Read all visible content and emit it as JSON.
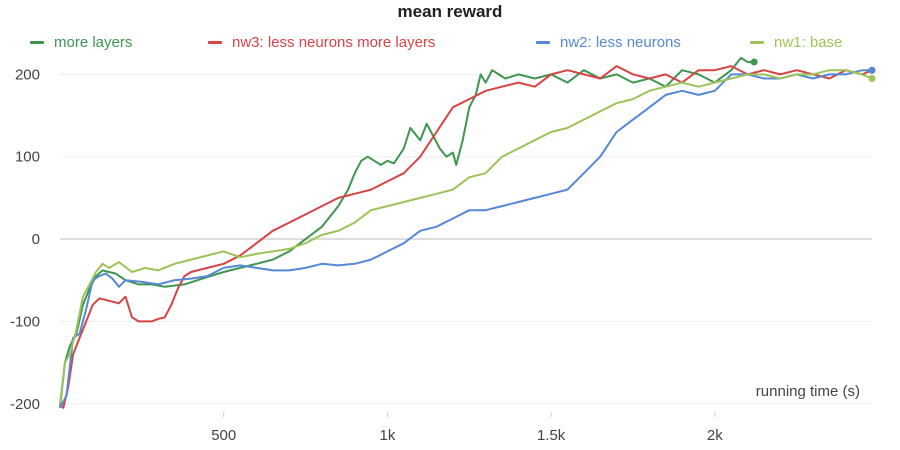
{
  "chart_data": {
    "type": "line",
    "title": "mean reward",
    "xlabel": "running time (s)",
    "ylabel": "",
    "xlim": [
      0,
      2480
    ],
    "ylim": [
      -210,
      215
    ],
    "xticks": [
      500,
      1000,
      1500,
      2000
    ],
    "xtick_labels": [
      "500",
      "1k",
      "1.5k",
      "2k"
    ],
    "yticks": [
      -200,
      -100,
      0,
      100,
      200
    ],
    "ytick_labels": [
      "-200",
      "-100",
      "0",
      "100",
      "200"
    ],
    "grid": true,
    "legend_position": "top",
    "series": [
      {
        "name": "more layers",
        "color": "#3e9651",
        "x": [
          0,
          15,
          30,
          50,
          70,
          90,
          110,
          130,
          150,
          170,
          200,
          240,
          280,
          320,
          380,
          420,
          460,
          500,
          550,
          600,
          650,
          700,
          750,
          800,
          850,
          880,
          900,
          920,
          940,
          960,
          980,
          1000,
          1020,
          1050,
          1070,
          1100,
          1120,
          1140,
          1160,
          1180,
          1200,
          1210,
          1230,
          1250,
          1270,
          1285,
          1300,
          1320,
          1340,
          1360,
          1400,
          1450,
          1500,
          1550,
          1600,
          1650,
          1700,
          1750,
          1800,
          1850,
          1900,
          1950,
          2000,
          2050,
          2080,
          2100,
          2120
        ],
        "y": [
          -205,
          -150,
          -130,
          -115,
          -80,
          -60,
          -45,
          -38,
          -40,
          -42,
          -50,
          -55,
          -55,
          -58,
          -55,
          -50,
          -45,
          -40,
          -35,
          -30,
          -25,
          -15,
          0,
          15,
          40,
          60,
          80,
          95,
          100,
          95,
          90,
          95,
          92,
          110,
          135,
          120,
          140,
          125,
          110,
          100,
          105,
          90,
          120,
          160,
          175,
          200,
          190,
          205,
          200,
          195,
          200,
          195,
          200,
          190,
          205,
          195,
          200,
          190,
          195,
          185,
          205,
          200,
          190,
          205,
          220,
          215,
          215
        ]
      },
      {
        "name": "nw3: less neurons more layers",
        "color": "#d84444",
        "x": [
          0,
          10,
          25,
          40,
          60,
          80,
          100,
          120,
          150,
          180,
          200,
          220,
          240,
          260,
          280,
          300,
          320,
          340,
          360,
          380,
          400,
          450,
          500,
          550,
          600,
          650,
          700,
          750,
          800,
          850,
          900,
          950,
          1000,
          1050,
          1100,
          1150,
          1200,
          1250,
          1300,
          1350,
          1400,
          1450,
          1500,
          1550,
          1600,
          1650,
          1700,
          1750,
          1800,
          1850,
          1900,
          1950,
          2000,
          2050,
          2100,
          2150,
          2200,
          2250,
          2300,
          2350,
          2400,
          2450,
          2480
        ],
        "y": [
          -200,
          -205,
          -180,
          -140,
          -120,
          -100,
          -80,
          -72,
          -75,
          -78,
          -70,
          -95,
          -100,
          -100,
          -100,
          -97,
          -95,
          -80,
          -60,
          -45,
          -40,
          -35,
          -30,
          -20,
          -5,
          10,
          20,
          30,
          40,
          50,
          55,
          60,
          70,
          80,
          100,
          130,
          160,
          170,
          180,
          185,
          190,
          185,
          200,
          205,
          200,
          195,
          210,
          200,
          195,
          200,
          190,
          205,
          205,
          210,
          200,
          205,
          200,
          205,
          200,
          195,
          205,
          200,
          205
        ]
      },
      {
        "name": "nw2: less neurons",
        "color": "#5588d6",
        "x": [
          0,
          20,
          40,
          60,
          80,
          100,
          120,
          140,
          160,
          180,
          200,
          250,
          300,
          350,
          400,
          450,
          500,
          550,
          600,
          650,
          700,
          750,
          800,
          850,
          900,
          950,
          1000,
          1050,
          1100,
          1150,
          1200,
          1250,
          1300,
          1350,
          1400,
          1450,
          1500,
          1550,
          1600,
          1650,
          1700,
          1750,
          1800,
          1850,
          1900,
          1950,
          2000,
          2050,
          2100,
          2150,
          2200,
          2250,
          2300,
          2350,
          2400,
          2450,
          2480
        ],
        "y": [
          -205,
          -190,
          -120,
          -115,
          -85,
          -50,
          -45,
          -42,
          -48,
          -58,
          -50,
          -52,
          -55,
          -50,
          -48,
          -45,
          -35,
          -32,
          -35,
          -38,
          -38,
          -35,
          -30,
          -32,
          -30,
          -25,
          -15,
          -5,
          10,
          15,
          25,
          35,
          35,
          40,
          45,
          50,
          55,
          60,
          80,
          100,
          130,
          145,
          160,
          175,
          180,
          175,
          180,
          200,
          200,
          195,
          195,
          200,
          195,
          200,
          200,
          205,
          205
        ]
      },
      {
        "name": "nw1: base",
        "color": "#9dc35b",
        "x": [
          0,
          15,
          30,
          50,
          70,
          90,
          110,
          130,
          150,
          180,
          220,
          260,
          300,
          350,
          400,
          450,
          500,
          550,
          600,
          650,
          700,
          750,
          800,
          850,
          900,
          950,
          1000,
          1050,
          1100,
          1150,
          1200,
          1250,
          1300,
          1350,
          1400,
          1450,
          1500,
          1550,
          1600,
          1650,
          1700,
          1750,
          1800,
          1850,
          1900,
          1950,
          2000,
          2050,
          2100,
          2150,
          2200,
          2250,
          2300,
          2350,
          2400,
          2450,
          2480
        ],
        "y": [
          -200,
          -150,
          -140,
          -110,
          -70,
          -55,
          -40,
          -30,
          -35,
          -28,
          -40,
          -35,
          -38,
          -30,
          -25,
          -20,
          -15,
          -22,
          -18,
          -15,
          -12,
          -5,
          5,
          10,
          20,
          35,
          40,
          45,
          50,
          55,
          60,
          75,
          80,
          100,
          110,
          120,
          130,
          135,
          145,
          155,
          165,
          170,
          180,
          185,
          190,
          185,
          190,
          195,
          200,
          200,
          195,
          200,
          200,
          205,
          205,
          200,
          195
        ]
      }
    ]
  }
}
